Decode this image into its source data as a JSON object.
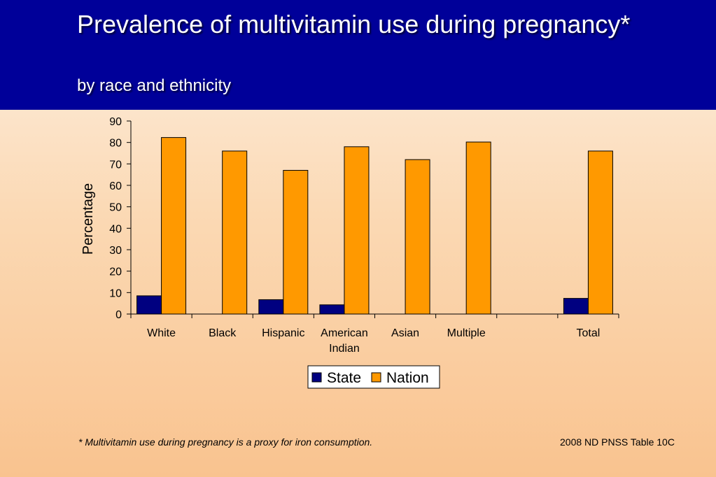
{
  "slide": {
    "title": "Prevalence of multivitamin use during pregnancy*",
    "subtitle": "by race and ethnicity",
    "footnote": "*  Multivitamin use during pregnancy is a proxy for iron consumption.",
    "source": "2008 ND PNSS Table 10C"
  },
  "chart_data": {
    "type": "bar",
    "title": "",
    "xlabel": "",
    "ylabel": "Percentage",
    "ylim": [
      0,
      90
    ],
    "yticks": [
      0,
      10,
      20,
      30,
      40,
      50,
      60,
      70,
      80,
      90
    ],
    "categories": [
      [
        "White"
      ],
      [
        "Black"
      ],
      [
        "Hispanic"
      ],
      [
        "American",
        "Indian"
      ],
      [
        "Asian"
      ],
      [
        "Multiple"
      ],
      [
        ""
      ],
      [
        "Total"
      ]
    ],
    "series": [
      {
        "name": "State",
        "color": "#000080",
        "values": [
          8.5,
          null,
          6.7,
          4.3,
          null,
          null,
          null,
          7.3
        ]
      },
      {
        "name": "Nation",
        "color": "#ff9900",
        "values": [
          82.3,
          76.0,
          67.0,
          78.0,
          72.0,
          80.2,
          null,
          76.0
        ]
      }
    ],
    "legend_position": "bottom",
    "grid": false
  }
}
